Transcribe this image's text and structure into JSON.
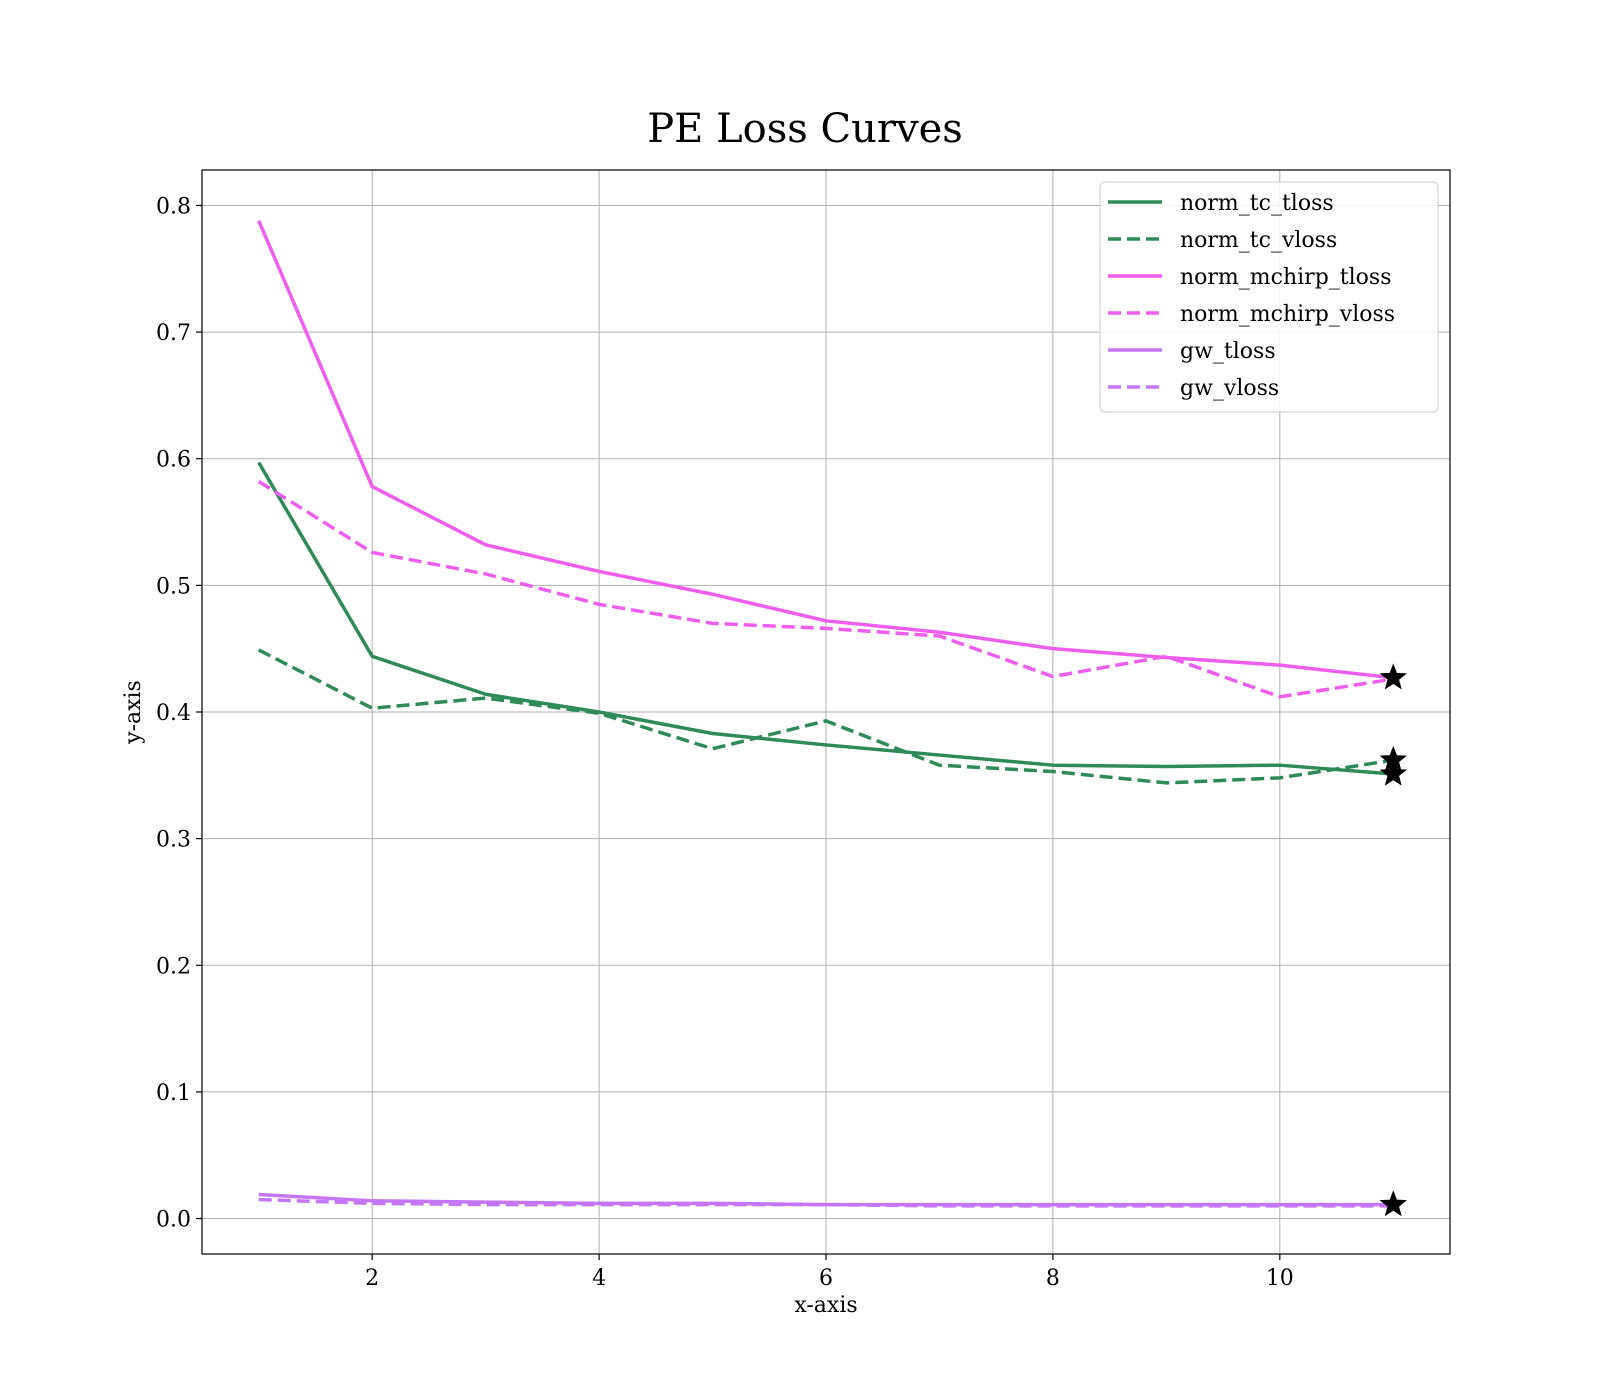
{
  "chart_data": {
    "type": "line",
    "title": "PE Loss Curves",
    "xlabel": "x-axis",
    "ylabel": "y-axis",
    "xlim": [
      0.5,
      11.5
    ],
    "ylim": [
      -0.028,
      0.828
    ],
    "xticks": [
      2,
      4,
      6,
      8,
      10
    ],
    "xtick_labels": [
      "2",
      "4",
      "6",
      "8",
      "10"
    ],
    "yticks": [
      0.0,
      0.1,
      0.2,
      0.3,
      0.4,
      0.5,
      0.6,
      0.7,
      0.8
    ],
    "ytick_labels": [
      "0.0",
      "0.1",
      "0.2",
      "0.3",
      "0.4",
      "0.5",
      "0.6",
      "0.7",
      "0.8"
    ],
    "grid": true,
    "legend_position": "top-right",
    "x": [
      1,
      2,
      3,
      4,
      5,
      6,
      7,
      8,
      9,
      10,
      11
    ],
    "series": [
      {
        "name": "norm_tc_tloss",
        "color": "#2e8b57",
        "style": "solid",
        "values": [
          0.597,
          0.444,
          0.414,
          0.4,
          0.383,
          0.374,
          0.366,
          0.358,
          0.357,
          0.358,
          0.351
        ]
      },
      {
        "name": "norm_tc_vloss",
        "color": "#2e8b57",
        "style": "dashed",
        "values": [
          0.449,
          0.403,
          0.411,
          0.399,
          0.371,
          0.393,
          0.358,
          0.353,
          0.344,
          0.348,
          0.362
        ]
      },
      {
        "name": "norm_mchirp_tloss",
        "color": "#ee5ded",
        "style": "solid",
        "values": [
          0.788,
          0.578,
          0.532,
          0.511,
          0.493,
          0.472,
          0.463,
          0.45,
          0.443,
          0.437,
          0.427
        ]
      },
      {
        "name": "norm_mchirp_vloss",
        "color": "#ee5ded",
        "style": "dashed",
        "values": [
          0.582,
          0.526,
          0.509,
          0.485,
          0.47,
          0.466,
          0.46,
          0.428,
          0.444,
          0.412,
          0.426
        ]
      },
      {
        "name": "gw_tloss",
        "color": "#c576f6",
        "style": "solid",
        "values": [
          0.019,
          0.014,
          0.013,
          0.012,
          0.012,
          0.011,
          0.011,
          0.011,
          0.011,
          0.011,
          0.011
        ]
      },
      {
        "name": "gw_vloss",
        "color": "#c576f6",
        "style": "dashed",
        "values": [
          0.015,
          0.012,
          0.011,
          0.011,
          0.011,
          0.011,
          0.01,
          0.01,
          0.01,
          0.01,
          0.01
        ]
      }
    ],
    "markers": [
      {
        "series": "norm_tc_tloss",
        "x": 11,
        "y": 0.351,
        "symbol": "star"
      },
      {
        "series": "norm_tc_vloss",
        "x": 11,
        "y": 0.362,
        "symbol": "star"
      },
      {
        "series": "norm_mchirp_tloss",
        "x": 11,
        "y": 0.427,
        "symbol": "star"
      },
      {
        "series": "gw_tloss",
        "x": 11,
        "y": 0.011,
        "symbol": "star"
      }
    ]
  }
}
